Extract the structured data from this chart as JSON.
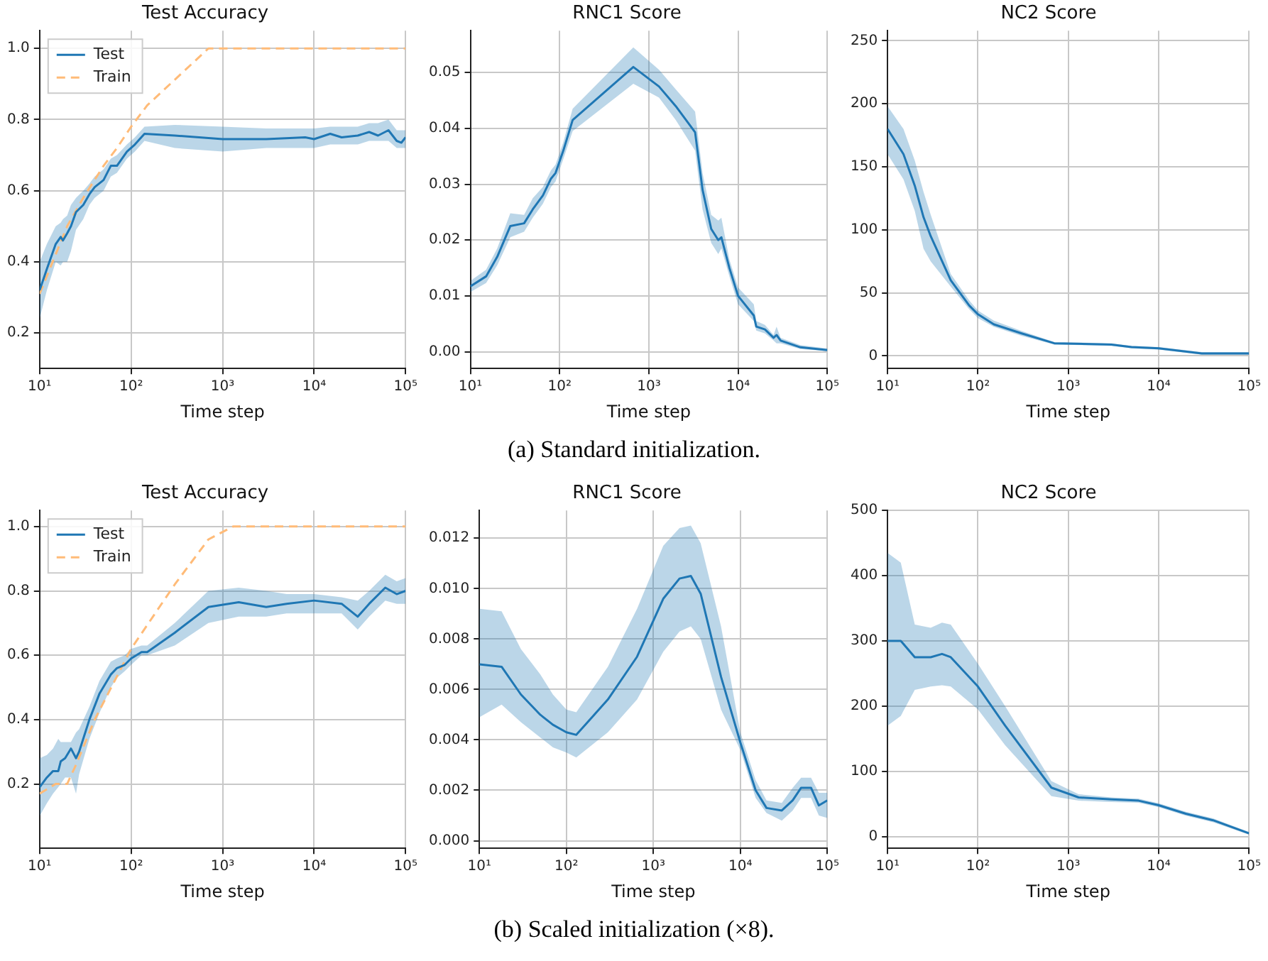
{
  "chart_data": [
    {
      "type": "line",
      "title": "Test Accuracy",
      "xlabel": "Time step",
      "log": "x",
      "grid": true,
      "legend": "top left",
      "annotations": [
        "(a) Standard initialization."
      ],
      "xlim": [
        10,
        100000
      ],
      "xticks": [
        {
          "value": 10,
          "label": "10¹"
        },
        {
          "value": 100,
          "label": "10²"
        },
        {
          "value": 1000,
          "label": "10³"
        },
        {
          "value": 10000,
          "label": "10⁴"
        },
        {
          "value": 100000,
          "label": "10⁵"
        }
      ],
      "ylim": [
        0.1,
        1.05
      ],
      "yticks": [
        0.2,
        0.4,
        0.6,
        0.8,
        {
          "value": 1,
          "label": "1.0"
        }
      ],
      "series": [
        {
          "name": "Test",
          "color": "#1f77b4",
          "x": [
            10,
            12,
            15,
            17,
            18,
            20,
            22,
            25,
            30,
            35,
            40,
            50,
            60,
            70,
            90,
            110,
            140,
            300,
            1000,
            3000,
            8000,
            10000,
            15000,
            20000,
            30000,
            40000,
            50000,
            65000,
            80000,
            90000,
            100000
          ],
          "values": [
            0.32,
            0.38,
            0.45,
            0.47,
            0.46,
            0.48,
            0.5,
            0.54,
            0.56,
            0.59,
            0.61,
            0.63,
            0.67,
            0.67,
            0.71,
            0.73,
            0.76,
            0.755,
            0.745,
            0.745,
            0.75,
            0.745,
            0.76,
            0.75,
            0.755,
            0.765,
            0.755,
            0.77,
            0.74,
            0.735,
            0.75
          ],
          "lower": [
            0.24,
            0.32,
            0.4,
            0.39,
            0.4,
            0.4,
            0.43,
            0.49,
            0.52,
            0.56,
            0.58,
            0.6,
            0.64,
            0.65,
            0.69,
            0.71,
            0.74,
            0.72,
            0.71,
            0.72,
            0.72,
            0.72,
            0.73,
            0.73,
            0.73,
            0.74,
            0.74,
            0.74,
            0.72,
            0.72,
            0.72
          ],
          "upper": [
            0.4,
            0.45,
            0.5,
            0.51,
            0.52,
            0.53,
            0.56,
            0.58,
            0.6,
            0.62,
            0.64,
            0.66,
            0.69,
            0.7,
            0.73,
            0.75,
            0.78,
            0.785,
            0.78,
            0.775,
            0.775,
            0.775,
            0.78,
            0.78,
            0.78,
            0.79,
            0.79,
            0.8,
            0.77,
            0.77,
            0.77
          ]
        },
        {
          "name": "Train",
          "color": "#ffbb78",
          "line_style": "dashed",
          "x": [
            10,
            20,
            30,
            50,
            70,
            100,
            150,
            700,
            100000
          ],
          "values": [
            0.31,
            0.5,
            0.58,
            0.67,
            0.72,
            0.78,
            0.84,
            1.0,
            1.0
          ]
        }
      ]
    },
    {
      "type": "line",
      "title": "RNC1 Score",
      "xlabel": "Time step",
      "log": "x",
      "grid": true,
      "xlim": [
        10,
        100000
      ],
      "xticks": [
        {
          "value": 10,
          "label": "10¹"
        },
        {
          "value": 100,
          "label": "10²"
        },
        {
          "value": 1000,
          "label": "10³"
        },
        {
          "value": 10000,
          "label": "10⁴"
        },
        {
          "value": 100000,
          "label": "10⁵"
        }
      ],
      "ylim": [
        -0.003,
        0.0575
      ],
      "yticks": [
        {
          "value": 0,
          "label": "0.00"
        },
        {
          "value": 0.01,
          "label": "0.01"
        },
        {
          "value": 0.02,
          "label": "0.02"
        },
        {
          "value": 0.03,
          "label": "0.03"
        },
        {
          "value": 0.04,
          "label": "0.04"
        },
        {
          "value": 0.05,
          "label": "0.05"
        }
      ],
      "series": [
        {
          "color": "#1f77b4",
          "x": [
            10,
            15,
            20,
            28,
            40,
            50,
            65,
            80,
            90,
            110,
            140,
            670,
            1300,
            2000,
            3300,
            4000,
            5000,
            6000,
            6500,
            8000,
            10000,
            15000,
            16000,
            20000,
            25000,
            27000,
            30000,
            50000,
            100000
          ],
          "values": [
            0.0117,
            0.0135,
            0.017,
            0.0225,
            0.023,
            0.0255,
            0.028,
            0.031,
            0.032,
            0.036,
            0.0415,
            0.051,
            0.0475,
            0.044,
            0.0393,
            0.029,
            0.022,
            0.02,
            0.0205,
            0.015,
            0.01,
            0.0065,
            0.0045,
            0.004,
            0.0025,
            0.003,
            0.002,
            0.0008,
            0.0003
          ],
          "lower": [
            0.0107,
            0.0123,
            0.0155,
            0.0205,
            0.0215,
            0.024,
            0.0265,
            0.0295,
            0.0305,
            0.0345,
            0.0395,
            0.048,
            0.0455,
            0.0415,
            0.036,
            0.0255,
            0.0195,
            0.0175,
            0.0185,
            0.0135,
            0.0085,
            0.0055,
            0.0038,
            0.0033,
            0.002,
            0.0015,
            0.0015,
            0.0005,
            0.0001
          ],
          "upper": [
            0.0127,
            0.0147,
            0.0185,
            0.0248,
            0.0245,
            0.0275,
            0.0295,
            0.0325,
            0.0335,
            0.0375,
            0.0435,
            0.0545,
            0.0505,
            0.047,
            0.043,
            0.032,
            0.0245,
            0.0235,
            0.024,
            0.0165,
            0.0115,
            0.0085,
            0.0055,
            0.0048,
            0.003,
            0.0045,
            0.0025,
            0.0012,
            0.0006
          ]
        }
      ]
    },
    {
      "type": "line",
      "title": "NC2 Score",
      "xlabel": "Time step",
      "log": "x",
      "grid": true,
      "xlim": [
        10,
        100000
      ],
      "xticks": [
        {
          "value": 10,
          "label": "10¹"
        },
        {
          "value": 100,
          "label": "10²"
        },
        {
          "value": 1000,
          "label": "10³"
        },
        {
          "value": 10000,
          "label": "10⁴"
        },
        {
          "value": 100000,
          "label": "10⁵"
        }
      ],
      "ylim": [
        -10,
        258
      ],
      "yticks": [
        0,
        50,
        100,
        150,
        200,
        250
      ],
      "series": [
        {
          "color": "#1f77b4",
          "x": [
            10,
            15,
            20,
            25,
            30,
            50,
            80,
            100,
            150,
            300,
            700,
            3000,
            5000,
            10000,
            30000,
            100000
          ],
          "values": [
            180,
            160,
            135,
            110,
            95,
            60,
            40,
            33,
            25,
            18,
            10,
            9,
            7,
            6,
            2,
            2
          ],
          "lower": [
            160,
            140,
            115,
            85,
            75,
            55,
            37,
            30,
            23,
            16,
            9,
            8,
            6,
            5,
            1,
            1
          ],
          "upper": [
            198,
            180,
            155,
            130,
            112,
            65,
            44,
            36,
            28,
            20,
            11,
            10,
            8,
            7,
            3,
            3
          ]
        }
      ]
    },
    {
      "type": "line",
      "title": "Test Accuracy",
      "xlabel": "Time step",
      "log": "x",
      "grid": true,
      "legend": "top left",
      "annotations": [
        "(b) Scaled initialization (×8)."
      ],
      "xlim": [
        10,
        100000
      ],
      "xticks": [
        {
          "value": 10,
          "label": "10¹"
        },
        {
          "value": 100,
          "label": "10²"
        },
        {
          "value": 1000,
          "label": "10³"
        },
        {
          "value": 10000,
          "label": "10⁴"
        },
        {
          "value": 100000,
          "label": "10⁵"
        }
      ],
      "ylim": [
        0,
        1.05
      ],
      "yticks": [
        0.2,
        0.4,
        0.6,
        0.8,
        {
          "value": 1,
          "label": "1.0"
        }
      ],
      "series": [
        {
          "name": "Test",
          "color": "#1f77b4",
          "x": [
            10,
            12,
            14,
            16,
            17,
            19,
            22,
            25,
            27,
            35,
            45,
            60,
            70,
            85,
            100,
            130,
            150,
            300,
            700,
            1500,
            3000,
            5000,
            10000,
            20000,
            30000,
            40000,
            60000,
            80000,
            100000
          ],
          "values": [
            0.19,
            0.22,
            0.24,
            0.24,
            0.27,
            0.28,
            0.31,
            0.28,
            0.3,
            0.4,
            0.48,
            0.54,
            0.56,
            0.57,
            0.59,
            0.61,
            0.61,
            0.67,
            0.75,
            0.765,
            0.75,
            0.76,
            0.77,
            0.76,
            0.72,
            0.76,
            0.81,
            0.79,
            0.8
          ],
          "lower": [
            0.1,
            0.14,
            0.17,
            0.19,
            0.2,
            0.22,
            0.22,
            0.17,
            0.23,
            0.34,
            0.42,
            0.5,
            0.53,
            0.55,
            0.57,
            0.6,
            0.6,
            0.63,
            0.7,
            0.72,
            0.72,
            0.73,
            0.73,
            0.73,
            0.68,
            0.72,
            0.77,
            0.76,
            0.76
          ],
          "upper": [
            0.28,
            0.29,
            0.31,
            0.34,
            0.33,
            0.33,
            0.33,
            0.36,
            0.37,
            0.44,
            0.52,
            0.58,
            0.59,
            0.6,
            0.62,
            0.63,
            0.63,
            0.7,
            0.8,
            0.81,
            0.8,
            0.79,
            0.79,
            0.78,
            0.77,
            0.8,
            0.85,
            0.83,
            0.84
          ]
        },
        {
          "name": "Train",
          "color": "#ffbb78",
          "line_style": "dashed",
          "x": [
            10,
            15,
            20,
            25,
            40,
            100,
            300,
            700,
            1300,
            100000
          ],
          "values": [
            0.17,
            0.2,
            0.2,
            0.26,
            0.4,
            0.62,
            0.82,
            0.96,
            1.0,
            1.0
          ]
        }
      ]
    },
    {
      "type": "line",
      "title": "RNC1 Score",
      "xlabel": "Time step",
      "log": "x",
      "grid": true,
      "xlim": [
        10,
        100000
      ],
      "xticks": [
        {
          "value": 10,
          "label": "10¹"
        },
        {
          "value": 100,
          "label": "10²"
        },
        {
          "value": 1000,
          "label": "10³"
        },
        {
          "value": 10000,
          "label": "10⁴"
        },
        {
          "value": 100000,
          "label": "10⁵"
        }
      ],
      "ylim": [
        -0.0003,
        0.0131
      ],
      "yticks": [
        {
          "value": 0,
          "label": "0.000"
        },
        {
          "value": 0.002,
          "label": "0.002"
        },
        {
          "value": 0.004,
          "label": "0.004"
        },
        {
          "value": 0.006,
          "label": "0.006"
        },
        {
          "value": 0.008,
          "label": "0.008"
        },
        {
          "value": 0.01,
          "label": "0.010"
        },
        {
          "value": 0.012,
          "label": "0.012"
        }
      ],
      "series": [
        {
          "color": "#1f77b4",
          "x": [
            10,
            18,
            30,
            50,
            70,
            100,
            130,
            300,
            650,
            1300,
            2000,
            2700,
            3500,
            6000,
            10000,
            15000,
            20000,
            30000,
            40000,
            50000,
            65000,
            80000,
            100000
          ],
          "values": [
            0.007,
            0.0069,
            0.0058,
            0.005,
            0.0046,
            0.0043,
            0.0042,
            0.0056,
            0.0073,
            0.0096,
            0.0104,
            0.0105,
            0.0098,
            0.0065,
            0.0039,
            0.002,
            0.0013,
            0.0012,
            0.0016,
            0.0021,
            0.0021,
            0.0014,
            0.0016
          ],
          "lower": [
            0.0049,
            0.0054,
            0.0047,
            0.0041,
            0.0037,
            0.0035,
            0.0033,
            0.0043,
            0.0056,
            0.0075,
            0.0083,
            0.0085,
            0.008,
            0.0052,
            0.0036,
            0.0017,
            0.0011,
            0.0008,
            0.0012,
            0.0017,
            0.0017,
            0.001,
            0.0009
          ],
          "upper": [
            0.0092,
            0.0091,
            0.0076,
            0.0066,
            0.0058,
            0.0052,
            0.0051,
            0.0069,
            0.0092,
            0.0117,
            0.0124,
            0.0125,
            0.0118,
            0.0085,
            0.0043,
            0.0024,
            0.0016,
            0.0015,
            0.0021,
            0.0025,
            0.0025,
            0.0019,
            0.0019
          ]
        }
      ]
    },
    {
      "type": "line",
      "title": "NC2 Score",
      "xlabel": "Time step",
      "log": "x",
      "grid": true,
      "xlim": [
        10,
        100000
      ],
      "xticks": [
        {
          "value": 10,
          "label": "10¹"
        },
        {
          "value": 100,
          "label": "10²"
        },
        {
          "value": 1000,
          "label": "10³"
        },
        {
          "value": 10000,
          "label": "10⁴"
        },
        {
          "value": 100000,
          "label": "10⁵"
        }
      ],
      "ylim": [
        -18,
        500
      ],
      "yticks": [
        0,
        100,
        200,
        300,
        400,
        500
      ],
      "series": [
        {
          "color": "#1f77b4",
          "x": [
            10,
            14,
            20,
            30,
            40,
            50,
            100,
            200,
            650,
            1300,
            3000,
            6000,
            10000,
            20000,
            40000,
            100000
          ],
          "values": [
            300,
            300,
            275,
            275,
            280,
            275,
            230,
            170,
            75,
            60,
            57,
            55,
            48,
            35,
            25,
            5
          ],
          "lower": [
            170,
            185,
            225,
            230,
            232,
            230,
            195,
            140,
            62,
            55,
            53,
            52,
            45,
            32,
            22,
            3
          ],
          "upper": [
            435,
            420,
            325,
            320,
            328,
            325,
            265,
            200,
            85,
            65,
            60,
            58,
            51,
            38,
            28,
            7
          ]
        }
      ]
    }
  ]
}
